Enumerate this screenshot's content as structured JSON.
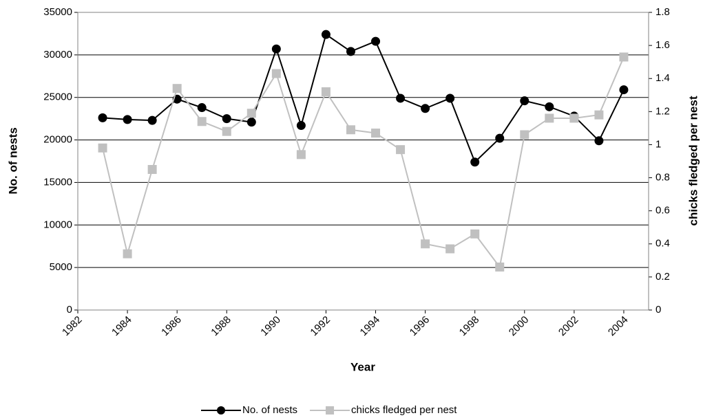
{
  "chart_data": {
    "type": "line",
    "x_label": "Year",
    "y_label": "No. of nests",
    "y2_label": "chicks fledged per nest",
    "x": [
      1983,
      1984,
      1985,
      1986,
      1987,
      1988,
      1989,
      1990,
      1991,
      1992,
      1993,
      1994,
      1995,
      1996,
      1997,
      1998,
      1999,
      2000,
      2001,
      2002,
      2003,
      2004
    ],
    "xlim": [
      1982,
      2005
    ],
    "xticks": [
      1982,
      1984,
      1986,
      1988,
      1990,
      1992,
      1994,
      1996,
      1998,
      2000,
      2002,
      2004
    ],
    "ylim": [
      0,
      35000
    ],
    "yticks": [
      0,
      5000,
      10000,
      15000,
      20000,
      25000,
      30000,
      35000
    ],
    "y2lim": [
      0,
      1.8
    ],
    "y2ticks": [
      0,
      0.2,
      0.4,
      0.6,
      0.8,
      1,
      1.2,
      1.4,
      1.6,
      1.8
    ],
    "grid": true,
    "legend": "bottom",
    "series": [
      {
        "name": "No. of nests",
        "color": "#000000",
        "marker": "circle",
        "values": [
          22600,
          22400,
          22300,
          24800,
          23800,
          22500,
          22100,
          30700,
          21700,
          32400,
          30400,
          31600,
          24900,
          23700,
          24900,
          17400,
          20200,
          24600,
          23900,
          22800,
          19900,
          25900
        ]
      },
      {
        "name": "chicks fledged per nest",
        "color": "#c0c0c0",
        "marker": "square",
        "axis": "y2",
        "values": [
          0.98,
          0.34,
          0.85,
          1.34,
          1.14,
          1.08,
          1.19,
          1.43,
          0.94,
          1.32,
          1.09,
          1.07,
          0.97,
          0.4,
          0.37,
          0.46,
          0.26,
          1.06,
          1.16,
          1.16,
          1.18,
          1.53
        ]
      }
    ]
  }
}
